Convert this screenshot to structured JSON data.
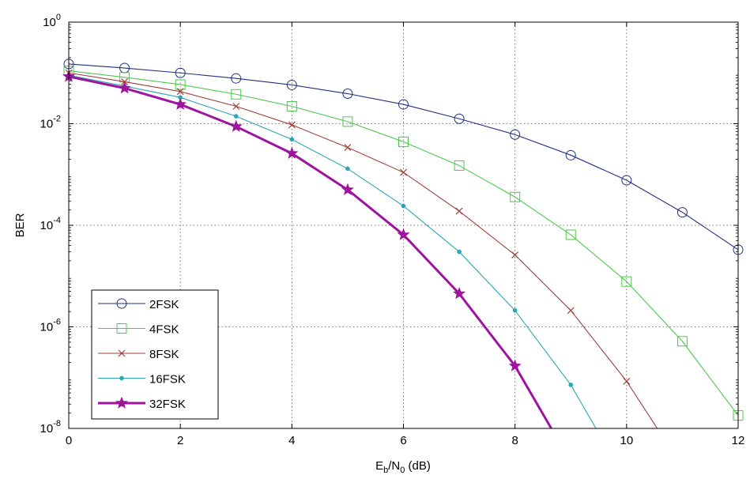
{
  "chart_data": {
    "type": "line",
    "xlabel": {
      "base": "E",
      "sub1": "b",
      "mid": "/N",
      "sub2": "0",
      "tail": " (dB)"
    },
    "ylabel": "BER",
    "xlim": [
      0,
      12
    ],
    "ylim": [
      1e-08,
      1
    ],
    "y_scale": "log",
    "grid": true,
    "legend_position": "bottom-left",
    "x_ticks": [
      "0",
      "2",
      "4",
      "6",
      "8",
      "10",
      "12"
    ],
    "y_ticks": [
      {
        "base": "10",
        "exp": "0",
        "value": 1
      },
      {
        "base": "10",
        "exp": "-2",
        "value": 0.01
      },
      {
        "base": "10",
        "exp": "-4",
        "value": 0.0001
      },
      {
        "base": "10",
        "exp": "-6",
        "value": 1e-06
      },
      {
        "base": "10",
        "exp": "-8",
        "value": 1e-08
      }
    ],
    "series": [
      {
        "name": "2FSK",
        "color": "#1f2f80",
        "marker": "circle",
        "bold": false,
        "x": [
          0,
          1,
          2,
          3,
          4,
          5,
          6,
          7,
          8,
          9,
          10,
          11,
          12
        ],
        "y": [
          0.15,
          0.125,
          0.1,
          0.078,
          0.058,
          0.039,
          0.024,
          0.0125,
          0.0061,
          0.0024,
          0.00077,
          0.00018,
          3.3e-05
        ]
      },
      {
        "name": "4FSK",
        "color": "#4cc94c",
        "marker": "square",
        "bold": false,
        "x": [
          0,
          1,
          2,
          3,
          4,
          5,
          6,
          7,
          8,
          9,
          10,
          11,
          12
        ],
        "y": [
          0.11,
          0.082,
          0.059,
          0.038,
          0.022,
          0.011,
          0.0044,
          0.0015,
          0.00036,
          6.5e-05,
          7.8e-06,
          5.2e-07,
          1.8e-08
        ]
      },
      {
        "name": "8FSK",
        "color": "#a0413a",
        "marker": "x",
        "bold": false,
        "x": [
          0,
          1,
          2,
          3,
          4,
          5,
          6,
          7,
          8,
          9,
          10,
          10.55
        ],
        "y": [
          0.1,
          0.067,
          0.043,
          0.022,
          0.0095,
          0.0034,
          0.0011,
          0.00019,
          2.6e-05,
          2.1e-06,
          8.5e-08,
          1e-08
        ]
      },
      {
        "name": "16FSK",
        "color": "#2aa7b3",
        "marker": "dot",
        "bold": false,
        "x": [
          0,
          1,
          2,
          3,
          4,
          5,
          6,
          7,
          8,
          9,
          9.45
        ],
        "y": [
          0.09,
          0.055,
          0.033,
          0.014,
          0.0049,
          0.0013,
          0.00024,
          3e-05,
          2.1e-06,
          7.2e-08,
          1e-08
        ]
      },
      {
        "name": "32FSK",
        "color": "#a0139e",
        "marker": "star",
        "bold": true,
        "x": [
          0,
          1,
          2,
          3,
          4,
          5,
          6,
          7,
          8,
          8.65
        ],
        "y": [
          0.085,
          0.05,
          0.024,
          0.0088,
          0.0026,
          0.0005,
          6.5e-05,
          4.5e-06,
          1.7e-07,
          1e-08
        ]
      }
    ]
  }
}
